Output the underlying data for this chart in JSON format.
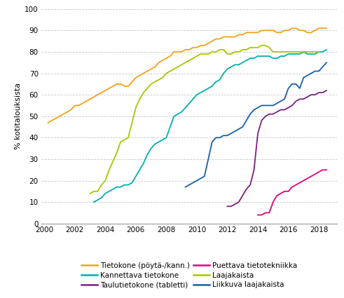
{
  "title": "",
  "ylabel": "% kotitalouksista",
  "xlabel": "",
  "ylim": [
    0,
    100
  ],
  "yticks": [
    0,
    10,
    20,
    30,
    40,
    50,
    60,
    70,
    80,
    90,
    100
  ],
  "xticks": [
    2000,
    2002,
    2004,
    2006,
    2008,
    2010,
    2012,
    2014,
    2016,
    2018
  ],
  "background_color": "#ffffff",
  "grid_color": "#c8c8c8",
  "series": {
    "Tietokone (pöytä-/kann.)": {
      "color": "#F4A119",
      "data_x": [
        2000.25,
        2000.5,
        2000.75,
        2001.0,
        2001.25,
        2001.5,
        2001.75,
        2002.0,
        2002.25,
        2002.5,
        2002.75,
        2003.0,
        2003.25,
        2003.5,
        2003.75,
        2004.0,
        2004.25,
        2004.5,
        2004.75,
        2005.0,
        2005.25,
        2005.5,
        2005.75,
        2006.0,
        2006.25,
        2006.5,
        2006.75,
        2007.0,
        2007.25,
        2007.5,
        2007.75,
        2008.0,
        2008.25,
        2008.5,
        2008.75,
        2009.0,
        2009.25,
        2009.5,
        2009.75,
        2010.0,
        2010.25,
        2010.5,
        2010.75,
        2011.0,
        2011.25,
        2011.5,
        2011.75,
        2012.0,
        2012.25,
        2012.5,
        2012.75,
        2013.0,
        2013.25,
        2013.5,
        2013.75,
        2014.0,
        2014.25,
        2014.5,
        2014.75,
        2015.0,
        2015.25,
        2015.5,
        2015.75,
        2016.0,
        2016.25,
        2016.5,
        2016.75,
        2017.0,
        2017.25,
        2017.5,
        2017.75,
        2018.0,
        2018.25,
        2018.5
      ],
      "data_y": [
        47,
        48,
        49,
        50,
        51,
        52,
        53,
        55,
        55,
        56,
        57,
        58,
        59,
        60,
        61,
        62,
        63,
        64,
        65,
        65,
        64,
        64,
        66,
        68,
        69,
        70,
        71,
        72,
        73,
        75,
        76,
        77,
        78,
        80,
        80,
        80,
        81,
        81,
        82,
        82,
        83,
        83,
        84,
        85,
        86,
        86,
        87,
        87,
        87,
        87,
        88,
        88,
        89,
        89,
        89,
        89,
        90,
        90,
        90,
        90,
        89,
        89,
        90,
        90,
        91,
        91,
        90,
        90,
        89,
        89,
        90,
        91,
        91,
        91
      ]
    },
    "Kannettava tietokone": {
      "color": "#00B0B0",
      "data_x": [
        2003.25,
        2003.5,
        2003.75,
        2004.0,
        2004.25,
        2004.5,
        2004.75,
        2005.0,
        2005.25,
        2005.5,
        2005.75,
        2006.0,
        2006.25,
        2006.5,
        2006.75,
        2007.0,
        2007.25,
        2007.5,
        2007.75,
        2008.0,
        2008.25,
        2008.5,
        2008.75,
        2009.0,
        2009.25,
        2009.5,
        2009.75,
        2010.0,
        2010.25,
        2010.5,
        2010.75,
        2011.0,
        2011.25,
        2011.5,
        2011.75,
        2012.0,
        2012.25,
        2012.5,
        2012.75,
        2013.0,
        2013.25,
        2013.5,
        2013.75,
        2014.0,
        2014.25,
        2014.5,
        2014.75,
        2015.0,
        2015.25,
        2015.5,
        2015.75,
        2016.0,
        2016.25,
        2016.5,
        2016.75,
        2017.0,
        2017.25,
        2017.5,
        2017.75,
        2018.0,
        2018.25,
        2018.5
      ],
      "data_y": [
        10,
        11,
        12,
        14,
        15,
        16,
        17,
        17,
        18,
        18,
        19,
        22,
        25,
        28,
        32,
        35,
        37,
        38,
        39,
        40,
        45,
        50,
        51,
        52,
        54,
        56,
        58,
        60,
        61,
        62,
        63,
        64,
        66,
        67,
        70,
        72,
        73,
        74,
        74,
        75,
        76,
        77,
        77,
        78,
        78,
        78,
        78,
        77,
        77,
        78,
        78,
        79,
        79,
        79,
        79,
        80,
        79,
        79,
        79,
        80,
        80,
        81
      ]
    },
    "Taulutietokone (tabletti)": {
      "color": "#7B2082",
      "data_x": [
        2012.0,
        2012.25,
        2012.5,
        2012.75,
        2013.0,
        2013.25,
        2013.5,
        2013.75,
        2014.0,
        2014.25,
        2014.5,
        2014.75,
        2015.0,
        2015.25,
        2015.5,
        2015.75,
        2016.0,
        2016.25,
        2016.5,
        2016.75,
        2017.0,
        2017.25,
        2017.5,
        2017.75,
        2018.0,
        2018.25,
        2018.5
      ],
      "data_y": [
        8,
        8,
        9,
        10,
        13,
        16,
        18,
        25,
        42,
        48,
        50,
        51,
        51,
        52,
        53,
        53,
        54,
        55,
        57,
        58,
        58,
        59,
        60,
        60,
        61,
        61,
        62
      ]
    },
    "Puettava tietotekniikka": {
      "color": "#E8007D",
      "data_x": [
        2014.0,
        2014.25,
        2014.5,
        2014.75,
        2015.0,
        2015.25,
        2015.5,
        2015.75,
        2016.0,
        2016.25,
        2016.5,
        2016.75,
        2017.0,
        2017.25,
        2017.5,
        2017.75,
        2018.0,
        2018.25,
        2018.5
      ],
      "data_y": [
        4,
        4,
        5,
        5,
        10,
        13,
        14,
        15,
        15,
        17,
        18,
        19,
        20,
        21,
        22,
        23,
        24,
        25,
        25
      ]
    },
    "Laajakaista": {
      "color": "#A8C800",
      "data_x": [
        2003.0,
        2003.25,
        2003.5,
        2003.75,
        2004.0,
        2004.25,
        2004.5,
        2004.75,
        2005.0,
        2005.25,
        2005.5,
        2005.75,
        2006.0,
        2006.25,
        2006.5,
        2006.75,
        2007.0,
        2007.25,
        2007.5,
        2007.75,
        2008.0,
        2008.25,
        2008.5,
        2008.75,
        2009.0,
        2009.25,
        2009.5,
        2009.75,
        2010.0,
        2010.25,
        2010.5,
        2010.75,
        2011.0,
        2011.25,
        2011.5,
        2011.75,
        2012.0,
        2012.25,
        2012.5,
        2012.75,
        2013.0,
        2013.25,
        2013.5,
        2013.75,
        2014.0,
        2014.25,
        2014.5,
        2014.75,
        2015.0,
        2015.25,
        2015.5,
        2015.75,
        2016.0,
        2016.25,
        2016.5,
        2016.75,
        2017.0,
        2017.25,
        2017.5,
        2017.75,
        2018.0
      ],
      "data_y": [
        14,
        15,
        15,
        18,
        20,
        25,
        29,
        33,
        38,
        39,
        40,
        47,
        54,
        58,
        61,
        63,
        65,
        66,
        67,
        68,
        70,
        71,
        72,
        73,
        74,
        75,
        76,
        77,
        78,
        79,
        79,
        79,
        80,
        80,
        81,
        81,
        79,
        79,
        80,
        80,
        81,
        81,
        82,
        82,
        82,
        83,
        83,
        82,
        80,
        80,
        80,
        80,
        80,
        80,
        80,
        80,
        80,
        80,
        80,
        80,
        80
      ]
    },
    "Liikkuva laajakaista": {
      "color": "#1A5FA8",
      "data_x": [
        2009.25,
        2009.5,
        2009.75,
        2010.0,
        2010.25,
        2010.5,
        2010.75,
        2011.0,
        2011.25,
        2011.5,
        2011.75,
        2012.0,
        2012.25,
        2012.5,
        2012.75,
        2013.0,
        2013.25,
        2013.5,
        2013.75,
        2014.0,
        2014.25,
        2014.5,
        2014.75,
        2015.0,
        2015.25,
        2015.5,
        2015.75,
        2016.0,
        2016.25,
        2016.5,
        2016.75,
        2017.0,
        2017.25,
        2017.5,
        2017.75,
        2018.0,
        2018.25,
        2018.5
      ],
      "data_y": [
        17,
        18,
        19,
        20,
        21,
        22,
        30,
        38,
        40,
        40,
        41,
        41,
        42,
        43,
        44,
        45,
        48,
        51,
        53,
        54,
        55,
        55,
        55,
        55,
        56,
        57,
        58,
        63,
        65,
        65,
        63,
        68,
        69,
        70,
        71,
        71,
        73,
        75
      ]
    }
  },
  "legend_order": [
    "Tietokone (pöytä-/kann.)",
    "Kannettava tietokone",
    "Taulutietokone (tabletti)",
    "Puettava tietotekniikka",
    "Laajakaista",
    "Liikkuva laajakaista"
  ]
}
